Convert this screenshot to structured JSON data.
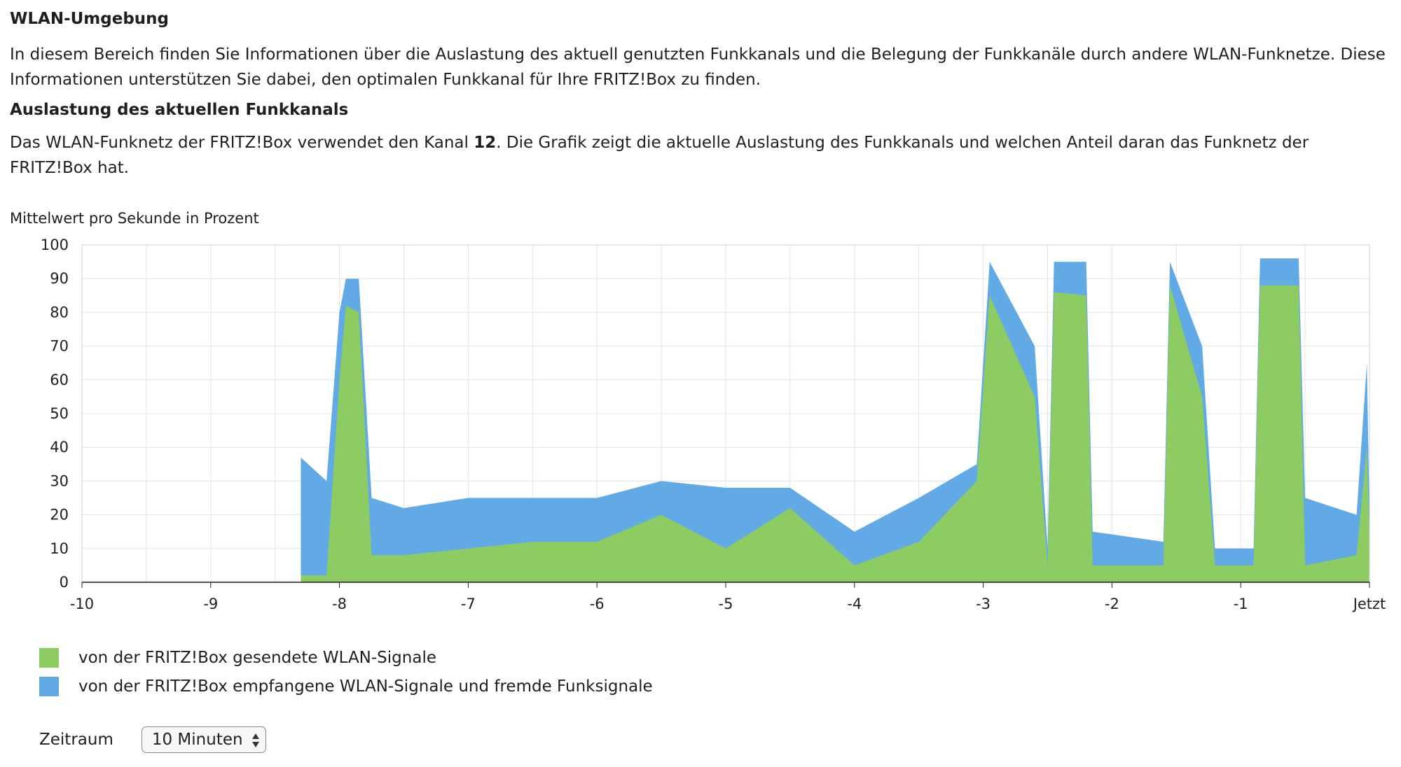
{
  "section": {
    "title": "WLAN-Umgebung",
    "intro": "In diesem Bereich finden Sie Informationen über die Auslastung des aktuell genutzten Funkkanals und die Belegung der Funkkanäle durch andere WLAN-Funknetze. Diese Informationen unterstützen Sie dabei, den optimalen Funkkanal für Ihre FRITZ!Box zu finden."
  },
  "channel_usage": {
    "title": "Auslastung des aktuellen Funkkanals",
    "text_before": "Das WLAN-Funknetz der FRITZ!Box verwendet den Kanal ",
    "channel": "12",
    "text_after": ". Die Grafik zeigt die aktuelle Auslastung des Funkkanals und welchen Anteil daran das Funknetz der FRITZ!Box hat."
  },
  "chart_data": {
    "type": "area",
    "ylabel": "Mittelwert pro Sekunde in Prozent",
    "xlabel": "",
    "x_ticks": [
      "-10",
      "-9",
      "-8",
      "-7",
      "-6",
      "-5",
      "-4",
      "-3",
      "-2",
      "-1",
      "Jetzt"
    ],
    "y_ticks": [
      "0",
      "10",
      "20",
      "30",
      "40",
      "50",
      "60",
      "70",
      "80",
      "90",
      "100"
    ],
    "xlim": [
      -10,
      0
    ],
    "ylim": [
      0,
      100
    ],
    "grid": true,
    "stacked": true,
    "colors": {
      "sent": "#8dcb63",
      "received": "#62aae6"
    },
    "series": [
      {
        "name": "von der FRITZ!Box gesendete WLAN-Signale",
        "points": [
          [
            -8.3,
            2
          ],
          [
            -8.1,
            2
          ],
          [
            -8.0,
            60
          ],
          [
            -7.95,
            82
          ],
          [
            -7.85,
            80
          ],
          [
            -7.75,
            8
          ],
          [
            -7.5,
            8
          ],
          [
            -7.0,
            10
          ],
          [
            -6.5,
            12
          ],
          [
            -6.0,
            12
          ],
          [
            -5.5,
            20
          ],
          [
            -5.0,
            10
          ],
          [
            -4.5,
            22
          ],
          [
            -4.0,
            5
          ],
          [
            -3.5,
            12
          ],
          [
            -3.05,
            30
          ],
          [
            -2.95,
            85
          ],
          [
            -2.6,
            55
          ],
          [
            -2.5,
            5
          ],
          [
            -2.45,
            86
          ],
          [
            -2.2,
            85
          ],
          [
            -2.15,
            5
          ],
          [
            -1.6,
            5
          ],
          [
            -1.55,
            88
          ],
          [
            -1.3,
            55
          ],
          [
            -1.2,
            5
          ],
          [
            -0.9,
            5
          ],
          [
            -0.85,
            88
          ],
          [
            -0.55,
            88
          ],
          [
            -0.5,
            5
          ],
          [
            -0.1,
            8
          ],
          [
            -0.02,
            40
          ],
          [
            0.0,
            10
          ]
        ]
      },
      {
        "name": "von der FRITZ!Box empfangene WLAN-Signale und fremde Funksignale",
        "points": [
          [
            -8.3,
            37
          ],
          [
            -8.1,
            30
          ],
          [
            -8.0,
            80
          ],
          [
            -7.95,
            90
          ],
          [
            -7.85,
            90
          ],
          [
            -7.75,
            25
          ],
          [
            -7.5,
            22
          ],
          [
            -7.0,
            25
          ],
          [
            -6.5,
            25
          ],
          [
            -6.0,
            25
          ],
          [
            -5.5,
            30
          ],
          [
            -5.0,
            28
          ],
          [
            -4.5,
            28
          ],
          [
            -4.0,
            15
          ],
          [
            -3.5,
            25
          ],
          [
            -3.05,
            35
          ],
          [
            -2.95,
            95
          ],
          [
            -2.6,
            70
          ],
          [
            -2.5,
            10
          ],
          [
            -2.45,
            95
          ],
          [
            -2.2,
            95
          ],
          [
            -2.15,
            15
          ],
          [
            -1.6,
            12
          ],
          [
            -1.55,
            95
          ],
          [
            -1.3,
            70
          ],
          [
            -1.2,
            10
          ],
          [
            -0.9,
            10
          ],
          [
            -0.85,
            96
          ],
          [
            -0.55,
            96
          ],
          [
            -0.5,
            25
          ],
          [
            -0.1,
            20
          ],
          [
            -0.02,
            65
          ],
          [
            0.0,
            20
          ]
        ]
      }
    ]
  },
  "legend": {
    "items": [
      {
        "label": "von der FRITZ!Box gesendete WLAN-Signale",
        "color": "#8dcb63"
      },
      {
        "label": "von der FRITZ!Box empfangene WLAN-Signale und fremde Funksignale",
        "color": "#62aae6"
      }
    ]
  },
  "period": {
    "label": "Zeitraum",
    "selected": "10 Minuten"
  }
}
